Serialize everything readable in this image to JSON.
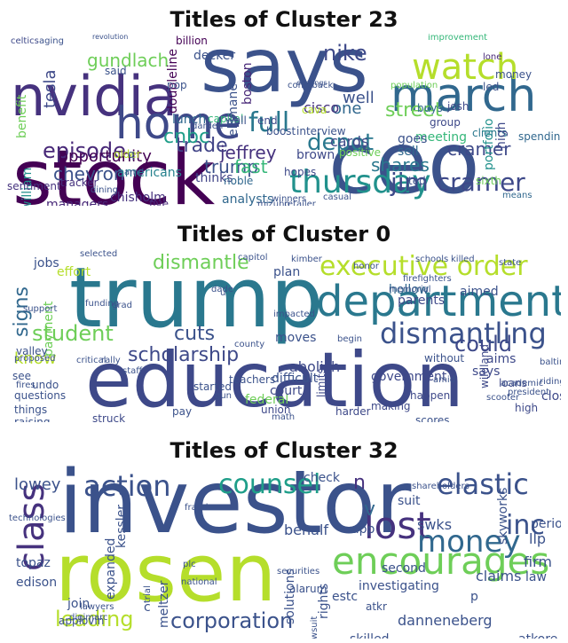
{
  "panels": [
    {
      "title": "Titles of Cluster 23",
      "words": [
        {
          "t": "stock",
          "c": "#440154"
        },
        {
          "t": "ceo",
          "c": "#3b528b"
        },
        {
          "t": "says",
          "c": "#3b528b"
        },
        {
          "t": "nvidia",
          "c": "#46327e"
        },
        {
          "t": "home",
          "c": "#3e4989"
        },
        {
          "t": "march",
          "c": "#31688e"
        },
        {
          "t": "watch",
          "c": "#b5de2b"
        },
        {
          "t": "thursday",
          "c": "#21918c"
        },
        {
          "t": "jim cramer",
          "c": "#3e4989"
        },
        {
          "t": "full",
          "c": "#2a788e"
        },
        {
          "t": "depot",
          "c": "#2a788e"
        },
        {
          "t": "episode",
          "c": "#482878"
        },
        {
          "t": "trade",
          "c": "#414487"
        },
        {
          "t": "jeffrey",
          "c": "#46327e"
        },
        {
          "t": "trump",
          "c": "#3b528b"
        },
        {
          "t": "cnbc",
          "c": "#1f9e89"
        },
        {
          "t": "shares",
          "c": "#2a788e"
        },
        {
          "t": "cramer",
          "c": "#3e4989"
        },
        {
          "t": "fast",
          "c": "#35b779"
        },
        {
          "t": "chevron",
          "c": "#3b528b"
        },
        {
          "t": "opportunity",
          "c": "#440154"
        },
        {
          "t": "street",
          "c": "#6ece58"
        },
        {
          "t": "tesla",
          "c": "#3e4989"
        },
        {
          "t": "gundlach",
          "c": "#6ece58"
        },
        {
          "t": "chisholm",
          "c": "#46327e"
        },
        {
          "t": "analysts",
          "c": "#31688e"
        },
        {
          "t": "managers",
          "c": "#482878"
        },
        {
          "t": "meeting",
          "c": "#35b779"
        },
        {
          "t": "cards",
          "c": "#3e4989"
        },
        {
          "t": "well",
          "c": "#3b528b"
        },
        {
          "t": "one",
          "c": "#31688e"
        },
        {
          "t": "goes",
          "c": "#3b528b"
        },
        {
          "t": "sell",
          "c": "#31688e"
        },
        {
          "t": "brown",
          "c": "#3e4989"
        },
        {
          "t": "cisco",
          "c": "#46327e"
        },
        {
          "t": "nike",
          "c": "#3e4989"
        },
        {
          "t": "lunch",
          "c": "#31688e"
        },
        {
          "t": "boston",
          "c": "#482878"
        },
        {
          "t": "billion",
          "c": "#440154"
        },
        {
          "t": "americans",
          "c": "#26828e"
        },
        {
          "t": "thinks",
          "c": "#414487"
        },
        {
          "t": "five",
          "c": "#482878"
        },
        {
          "t": "capital",
          "c": "#35b779"
        },
        {
          "t": "decker",
          "c": "#3b528b"
        },
        {
          "t": "doubleline",
          "c": "#440154"
        },
        {
          "t": "ellimane",
          "c": "#3b528b"
        },
        {
          "t": "noble",
          "c": "#31688e"
        },
        {
          "t": "older",
          "c": "#b5de2b"
        },
        {
          "t": "william",
          "c": "#21918c"
        },
        {
          "t": "sentiment",
          "c": "#46327e"
        },
        {
          "t": "tracker",
          "c": "#46327e"
        },
        {
          "t": "celtics",
          "c": "#3e4989"
        },
        {
          "t": "aging",
          "c": "#3b528b"
        },
        {
          "t": "benefit",
          "c": "#6ece58"
        },
        {
          "t": "interview",
          "c": "#3b528b"
        },
        {
          "t": "boost",
          "c": "#3b528b"
        },
        {
          "t": "hopes",
          "c": "#3e4989"
        },
        {
          "t": "portfolio",
          "c": "#21918c"
        },
        {
          "t": "spending",
          "c": "#31688e"
        },
        {
          "t": "clients",
          "c": "#2a788e"
        },
        {
          "t": "group",
          "c": "#3e4989"
        },
        {
          "t": "buys",
          "c": "#31688e"
        },
        {
          "t": "josh",
          "c": "#3e4989"
        },
        {
          "t": "high",
          "c": "#3e4989"
        },
        {
          "t": "led",
          "c": "#3b528b"
        },
        {
          "t": "money",
          "c": "#3b528b"
        },
        {
          "t": "ted",
          "c": "#3b528b"
        },
        {
          "t": "sixth",
          "c": "#6ece58"
        },
        {
          "t": "means",
          "c": "#31688e"
        },
        {
          "t": "cava",
          "c": "#b5de2b"
        },
        {
          "t": "end",
          "c": "#3e4989"
        },
        {
          "t": "wall",
          "c": "#3b528b"
        },
        {
          "t": "said",
          "c": "#3b528b"
        },
        {
          "t": "q",
          "c": "#3b528b"
        },
        {
          "t": "pop",
          "c": "#3b528b"
        },
        {
          "t": "amd",
          "c": "#3b528b"
        },
        {
          "t": "lone",
          "c": "#482878"
        },
        {
          "t": "positive",
          "c": "#6ece58"
        },
        {
          "t": "mizuho",
          "c": "#3b528b"
        },
        {
          "t": "retailer",
          "c": "#3b528b"
        },
        {
          "t": "casual",
          "c": "#3b528b"
        },
        {
          "t": "dining",
          "c": "#3b528b"
        },
        {
          "t": "winners",
          "c": "#3b528b"
        },
        {
          "t": "darden",
          "c": "#3b528b"
        },
        {
          "t": "comeback",
          "c": "#3b528b"
        },
        {
          "t": "improvement",
          "c": "#35b779"
        },
        {
          "t": "earnings",
          "c": "#3b528b"
        },
        {
          "t": "population",
          "c": "#6ece58"
        },
        {
          "t": "revolution",
          "c": "#3b528b"
        }
      ]
    },
    {
      "title": "Titles of Cluster 0",
      "words": [
        {
          "t": "education",
          "c": "#3e4989"
        },
        {
          "t": "trump",
          "c": "#2a788e"
        },
        {
          "t": "department",
          "c": "#2a788e"
        },
        {
          "t": "executive order",
          "c": "#b5de2b"
        },
        {
          "t": "dismantling",
          "c": "#3b528b"
        },
        {
          "t": "dismantle",
          "c": "#6ece58"
        },
        {
          "t": "student",
          "c": "#6ece58"
        },
        {
          "t": "cuts",
          "c": "#3b528b"
        },
        {
          "t": "scholarship",
          "c": "#3e4989"
        },
        {
          "t": "could",
          "c": "#3e4989"
        },
        {
          "t": "signs",
          "c": "#31688e"
        },
        {
          "t": "know",
          "c": "#b5de2b"
        },
        {
          "t": "abolish",
          "c": "#3e4989"
        },
        {
          "t": "federal",
          "c": "#6ece58"
        },
        {
          "t": "government",
          "c": "#3e4989"
        },
        {
          "t": "difficult",
          "c": "#3b528b"
        },
        {
          "t": "union",
          "c": "#3e4989"
        },
        {
          "t": "court",
          "c": "#3e4989"
        },
        {
          "t": "moves",
          "c": "#3b528b"
        },
        {
          "t": "effort",
          "c": "#b5de2b"
        },
        {
          "t": "plan",
          "c": "#3b528b"
        },
        {
          "t": "jobs",
          "c": "#3b528b"
        },
        {
          "t": "aimed",
          "c": "#3b528b"
        },
        {
          "t": "hollow",
          "c": "#31688e"
        },
        {
          "t": "parents",
          "c": "#3e4989"
        },
        {
          "t": "aims",
          "c": "#3e4989"
        },
        {
          "t": "says",
          "c": "#3e4989"
        },
        {
          "t": "loans",
          "c": "#3e4989"
        },
        {
          "t": "close",
          "c": "#3e4989"
        },
        {
          "t": "high",
          "c": "#3e4989"
        },
        {
          "t": "undo",
          "c": "#3b528b"
        },
        {
          "t": "questions",
          "c": "#3b528b"
        },
        {
          "t": "things",
          "c": "#3b528b"
        },
        {
          "t": "raising",
          "c": "#3b528b"
        },
        {
          "t": "struck",
          "c": "#3e4989"
        },
        {
          "t": "pay",
          "c": "#3b528b"
        },
        {
          "t": "harder",
          "c": "#3e4989"
        },
        {
          "t": "making",
          "c": "#3e4989"
        },
        {
          "t": "increase",
          "c": "#3b528b"
        },
        {
          "t": "scores",
          "c": "#3b528b"
        },
        {
          "t": "limits",
          "c": "#3e4989"
        },
        {
          "t": "begin",
          "c": "#3b528b"
        },
        {
          "t": "memorial",
          "c": "#3b528b"
        },
        {
          "t": "schools",
          "c": "#3b528b"
        },
        {
          "t": "killed",
          "c": "#3b528b"
        },
        {
          "t": "started",
          "c": "#3b528b"
        },
        {
          "t": "teachers'",
          "c": "#3b528b"
        },
        {
          "t": "payment",
          "c": "#6ece58"
        },
        {
          "t": "see",
          "c": "#3b528b"
        },
        {
          "t": "valley",
          "c": "#3b528b"
        },
        {
          "t": "without",
          "c": "#3b528b"
        },
        {
          "t": "happen",
          "c": "#3e4989"
        },
        {
          "t": "wildland",
          "c": "#3e4989"
        },
        {
          "t": "baltimore",
          "c": "#3b528b"
        },
        {
          "t": "riding",
          "c": "#3b528b"
        },
        {
          "t": "u",
          "c": "#3b528b"
        },
        {
          "t": "math",
          "c": "#3b528b"
        },
        {
          "t": "honor",
          "c": "#3b528b"
        },
        {
          "t": "grad",
          "c": "#3b528b"
        },
        {
          "t": "singles",
          "c": "#3b528b"
        },
        {
          "t": "secures",
          "c": "#3b528b"
        },
        {
          "t": "teachers",
          "c": "#3b528b"
        },
        {
          "t": "firefighters",
          "c": "#3b528b"
        },
        {
          "t": "state",
          "c": "#3b528b"
        },
        {
          "t": "selected",
          "c": "#3b528b"
        },
        {
          "t": "kimber",
          "c": "#3b528b"
        },
        {
          "t": "funding",
          "c": "#3b528b"
        },
        {
          "t": "proposed",
          "c": "#3b528b"
        },
        {
          "t": "support",
          "c": "#3b528b"
        },
        {
          "t": "capitol",
          "c": "#3b528b"
        },
        {
          "t": "impacted",
          "c": "#3b528b"
        },
        {
          "t": "county",
          "c": "#3b528b"
        },
        {
          "t": "dade",
          "c": "#3b528b"
        },
        {
          "t": "staff",
          "c": "#3b528b"
        },
        {
          "t": "amid",
          "c": "#3b528b"
        },
        {
          "t": "scooter",
          "c": "#3b528b"
        },
        {
          "t": "president",
          "c": "#3b528b"
        },
        {
          "t": "academic",
          "c": "#3b528b"
        },
        {
          "t": "critical",
          "c": "#3b528b"
        },
        {
          "t": "rally",
          "c": "#3b528b"
        },
        {
          "t": "gun",
          "c": "#3b528b"
        },
        {
          "t": "fires",
          "c": "#3b528b"
        },
        {
          "t": "miami",
          "c": "#3b528b"
        },
        {
          "t": "violence",
          "c": "#3b528b"
        },
        {
          "t": "vice",
          "c": "#3b528b"
        },
        {
          "t": "colorado",
          "c": "#3b528b"
        }
      ]
    },
    {
      "title": "Titles of Cluster 32",
      "words": [
        {
          "t": "investor",
          "c": "#3b528b"
        },
        {
          "t": "rosen",
          "c": "#b5de2b"
        },
        {
          "t": "class",
          "c": "#46327e"
        },
        {
          "t": "encourages",
          "c": "#6ece58"
        },
        {
          "t": "lost",
          "c": "#46327e"
        },
        {
          "t": "money",
          "c": "#31688e"
        },
        {
          "t": "action",
          "c": "#3b528b"
        },
        {
          "t": "counsel",
          "c": "#1f9e89"
        },
        {
          "t": "elastic",
          "c": "#3b528b"
        },
        {
          "t": "inc",
          "c": "#3b528b"
        },
        {
          "t": "corporation",
          "c": "#3b528b"
        },
        {
          "t": "leading",
          "c": "#b5de2b"
        },
        {
          "t": "n",
          "c": "#46327e"
        },
        {
          "t": "v",
          "c": "#31688e"
        },
        {
          "t": "investigating",
          "c": "#3b528b"
        },
        {
          "t": "danneneberg",
          "c": "#3b528b"
        },
        {
          "t": "claims",
          "c": "#3b528b"
        },
        {
          "t": "firm",
          "c": "#3b528b"
        },
        {
          "t": "law",
          "c": "#3b528b"
        },
        {
          "t": "llp",
          "c": "#3b528b"
        },
        {
          "t": "period",
          "c": "#3b528b"
        },
        {
          "t": "skyworks",
          "c": "#3b528b"
        },
        {
          "t": "swks",
          "c": "#3b528b"
        },
        {
          "t": "second",
          "c": "#3b528b"
        },
        {
          "t": "rights",
          "c": "#3b528b"
        },
        {
          "t": "solutions",
          "c": "#3b528b"
        },
        {
          "t": "meltzer",
          "c": "#3b528b"
        },
        {
          "t": "expanded",
          "c": "#3b528b"
        },
        {
          "t": "kessler",
          "c": "#3b528b"
        },
        {
          "t": "behalf",
          "c": "#3b528b"
        },
        {
          "t": "lowey",
          "c": "#3b528b"
        },
        {
          "t": "topaz",
          "c": "#3b528b"
        },
        {
          "t": "edison",
          "c": "#3b528b"
        },
        {
          "t": "join",
          "c": "#3b528b"
        },
        {
          "t": "applovin",
          "c": "#3b528b"
        },
        {
          "t": "skilled",
          "c": "#3b528b"
        },
        {
          "t": "atkore",
          "c": "#3b528b"
        },
        {
          "t": "estc",
          "c": "#3b528b"
        },
        {
          "t": "atkr",
          "c": "#3b528b"
        },
        {
          "t": "check",
          "c": "#3b528b"
        },
        {
          "t": "suit",
          "c": "#3b528b"
        },
        {
          "t": "app",
          "c": "#3b528b"
        },
        {
          "t": "p",
          "c": "#3b528b"
        },
        {
          "t": "c",
          "c": "#3b528b"
        },
        {
          "t": "alarum",
          "c": "#3b528b"
        },
        {
          "t": "lawsuit",
          "c": "#3b528b"
        },
        {
          "t": "securities",
          "c": "#3b528b"
        },
        {
          "t": "shareholders",
          "c": "#3b528b"
        },
        {
          "t": "fraud",
          "c": "#3b528b"
        },
        {
          "t": "plc",
          "c": "#3b528b"
        },
        {
          "t": "national",
          "c": "#3b528b"
        },
        {
          "t": "lawyers",
          "c": "#3b528b"
        },
        {
          "t": "digimarc",
          "c": "#3b528b"
        },
        {
          "t": "trial",
          "c": "#3b528b"
        },
        {
          "t": "technologies",
          "c": "#3b528b"
        }
      ]
    }
  ]
}
